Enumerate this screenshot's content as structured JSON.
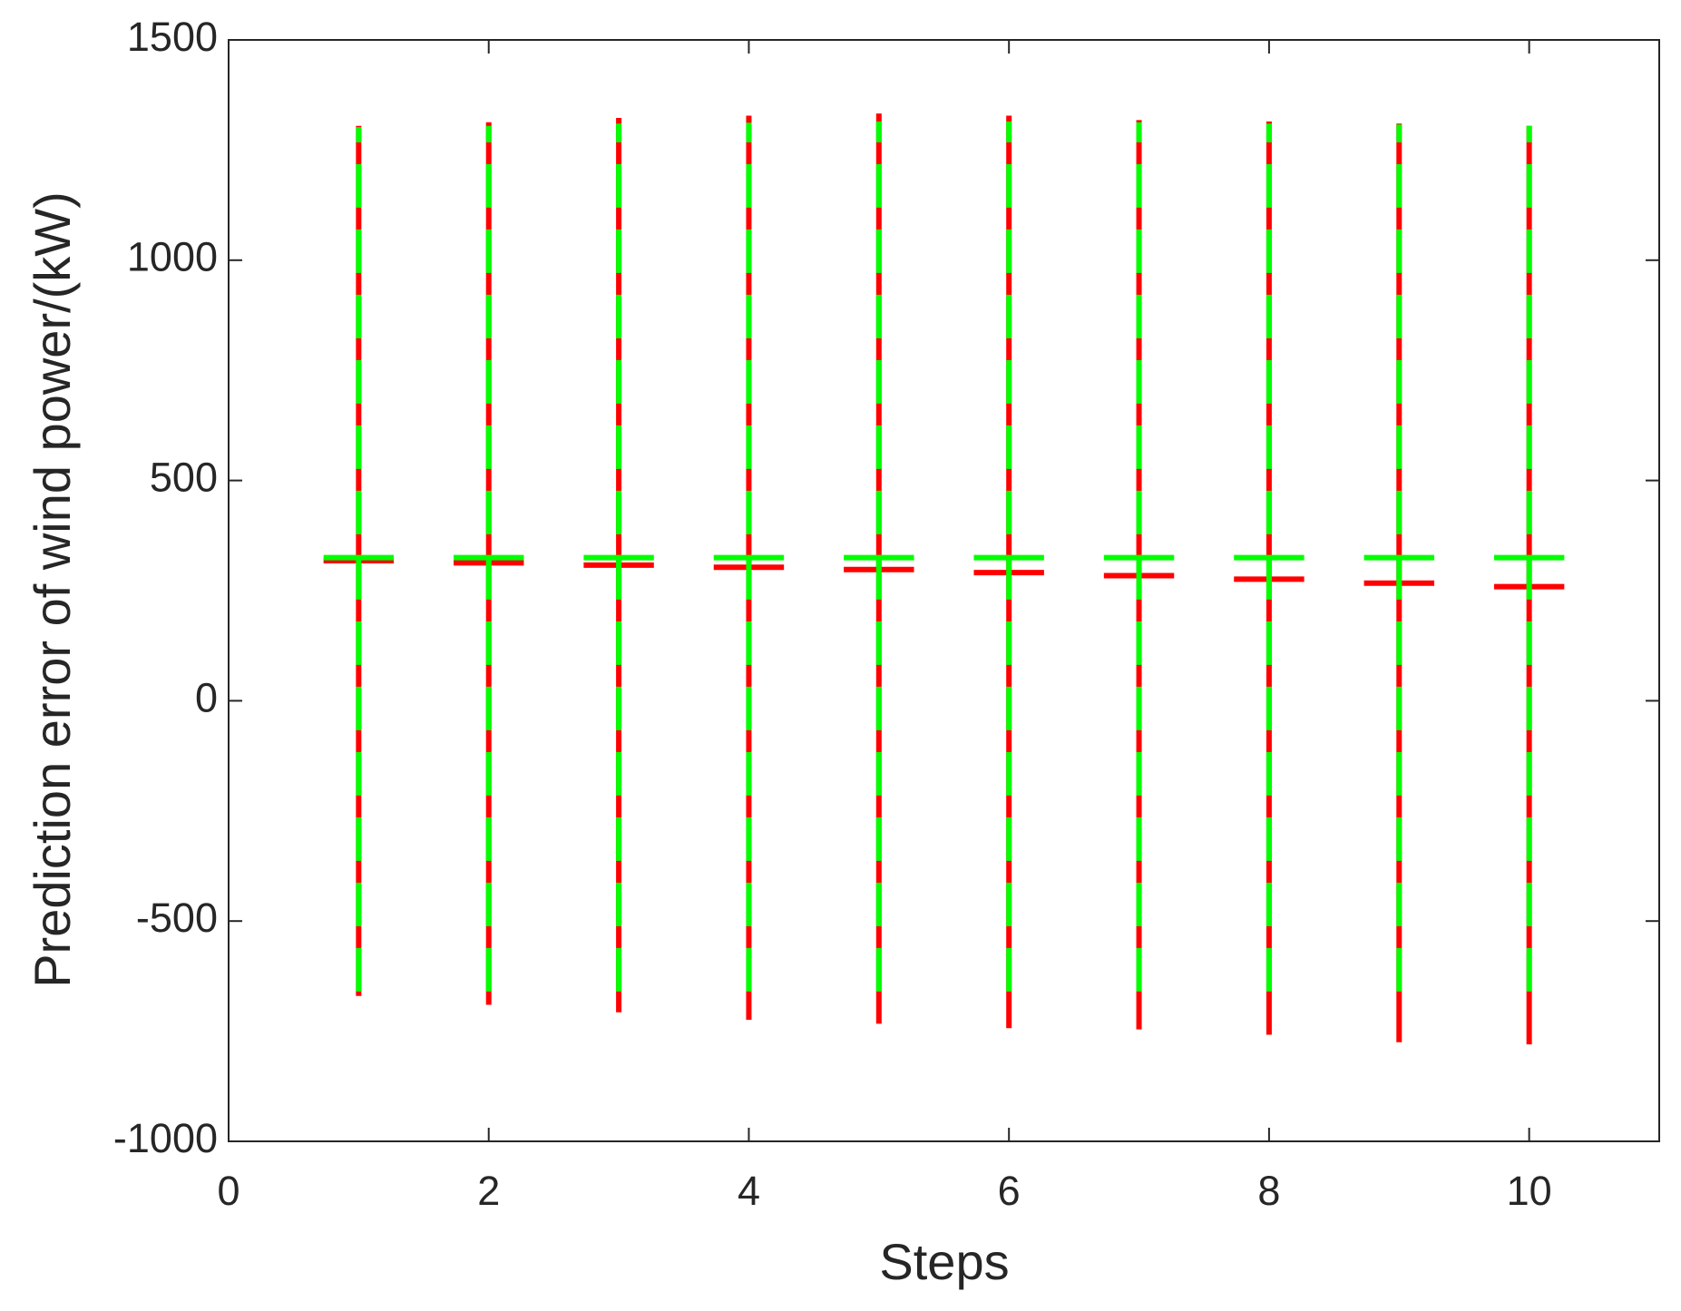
{
  "chart_data": {
    "type": "errorbar",
    "xlabel": "Steps",
    "ylabel": "Prediction error of wind power/(kW)",
    "x": [
      1,
      2,
      3,
      4,
      5,
      6,
      7,
      8,
      9,
      10
    ],
    "series": [
      {
        "color": "#ff0000",
        "values": [
          318,
          313,
          308,
          303,
          298,
          291,
          284,
          276,
          267,
          259
        ],
        "lower": [
          -670,
          -690,
          -707,
          -724,
          -733,
          -743,
          -746,
          -758,
          -775,
          -780
        ],
        "upper": [
          1305,
          1313,
          1323,
          1328,
          1333,
          1328,
          1318,
          1315,
          1310,
          1305
        ]
      },
      {
        "color": "#00ff00",
        "values": [
          325,
          325,
          325,
          325,
          325,
          325,
          325,
          325,
          325,
          325
        ],
        "lower": [
          -660,
          -660,
          -660,
          -660,
          -660,
          -660,
          -660,
          -660,
          -660,
          -660
        ],
        "upper": [
          1302,
          1305,
          1310,
          1312,
          1315,
          1315,
          1313,
          1310,
          1308,
          1305
        ]
      }
    ],
    "xlim": [
      0,
      11
    ],
    "xticks": [
      0,
      2,
      4,
      6,
      8,
      10
    ],
    "ylim": [
      -1000,
      1500
    ],
    "yticks": [
      -1000,
      -500,
      0,
      500,
      1000,
      1500
    ]
  }
}
